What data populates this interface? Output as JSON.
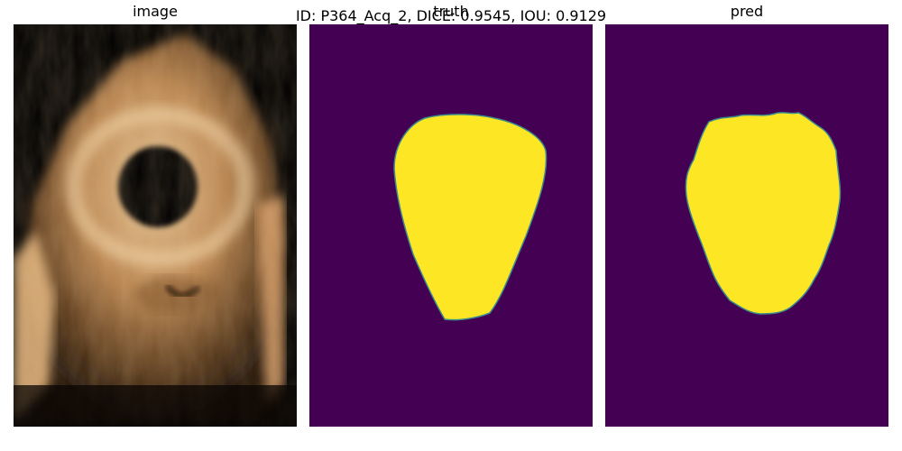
{
  "figure": {
    "suptitle": "ID: P364_Acq_2, DICE: 0.9545, IOU: 0.9129"
  },
  "panels": [
    {
      "title": "image"
    },
    {
      "title": "truth"
    },
    {
      "title": "pred"
    }
  ],
  "colors": {
    "mask_background": "#440154",
    "mask_foreground": "#fde725",
    "mask_edge": "#3b8a8c",
    "image_tint": "#d9a56a"
  }
}
